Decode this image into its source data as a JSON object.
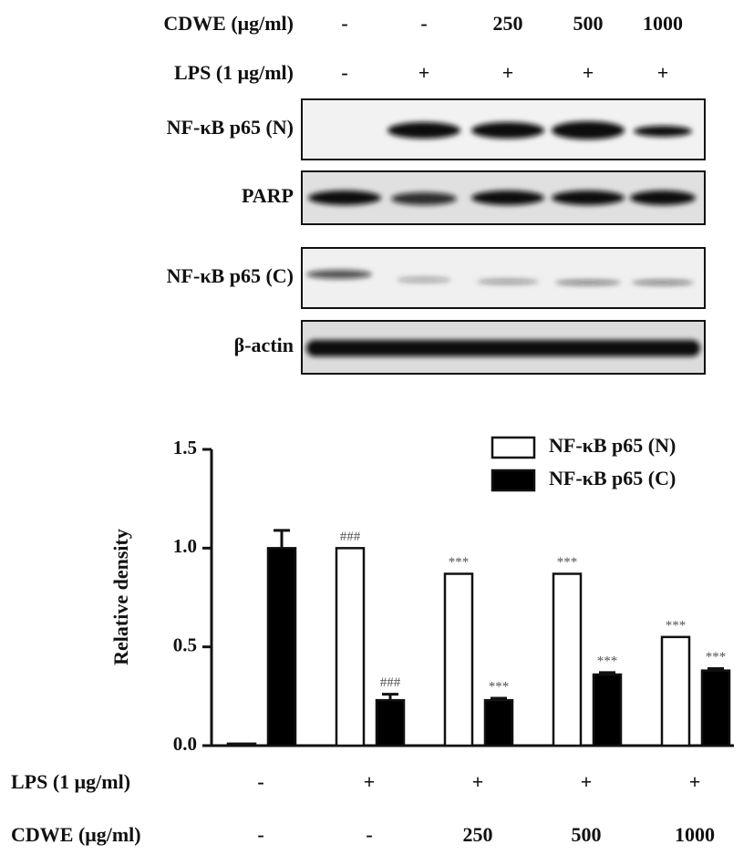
{
  "blot": {
    "rows": [
      {
        "label": "CDWE (μg/ml)",
        "values": [
          "-",
          "-",
          "250",
          "500",
          "1000"
        ]
      },
      {
        "label": "LPS (1 μg/ml)",
        "values": [
          "-",
          "+",
          "+",
          "+",
          "+"
        ]
      }
    ],
    "bands": [
      "NF-κB p65 (N)",
      "PARP",
      "NF-κB p65 (C)",
      "β-actin"
    ]
  },
  "chart_data": {
    "type": "bar",
    "y_label": "Relative density",
    "conditions": [
      {
        "label": "LPS (1 μg/ml)",
        "values": [
          "-",
          "+",
          "+",
          "+",
          "+"
        ]
      },
      {
        "label": "CDWE (μg/ml)",
        "values": [
          "-",
          "-",
          "250",
          "500",
          "1000"
        ]
      }
    ],
    "series": [
      {
        "name": "NF-κB p65 (N)",
        "color": "#ffffff",
        "values": [
          0.01,
          1.0,
          0.87,
          0.87,
          0.55
        ],
        "annotations": [
          null,
          "###",
          "***",
          "***",
          "***"
        ]
      },
      {
        "name": "NF-κB p65 (C)",
        "color": "#000000",
        "values": [
          1.0,
          0.23,
          0.23,
          0.36,
          0.38
        ],
        "errors": [
          0.09,
          0.03,
          0.01,
          0.01,
          0.01
        ],
        "annotations": [
          null,
          "###",
          "***",
          "***",
          "***"
        ]
      }
    ],
    "ylim": [
      0,
      1.5
    ],
    "yticks": [
      {
        "value": 0,
        "label": "0.0"
      },
      {
        "value": 0.5,
        "label": "0.5"
      },
      {
        "value": 1,
        "label": "1.0"
      },
      {
        "value": 1.5,
        "label": "1.5"
      }
    ],
    "legend": "upper right"
  }
}
